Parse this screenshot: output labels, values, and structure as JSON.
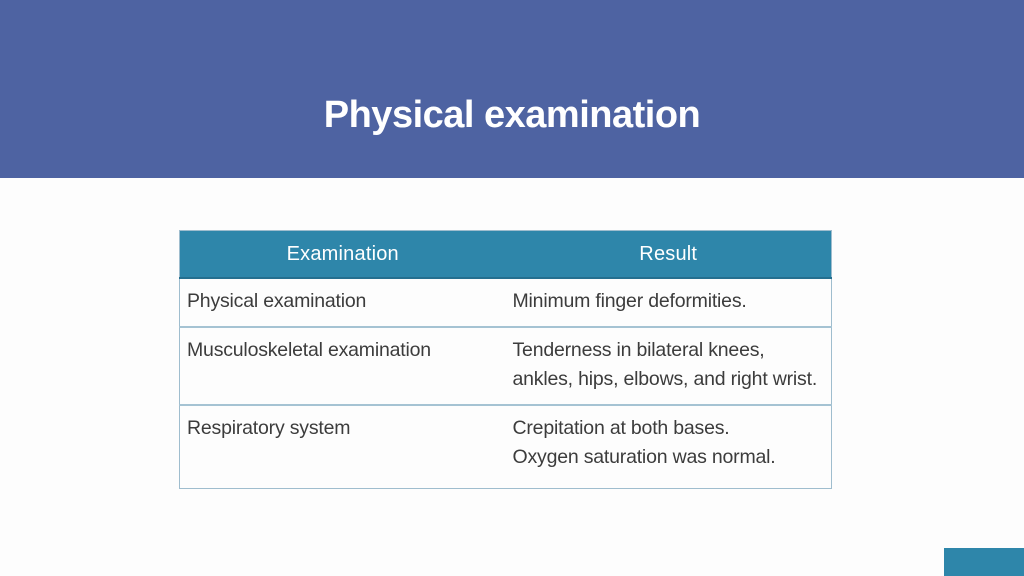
{
  "slide": {
    "title": "Physical examination",
    "background_color": "#FDFDFD"
  },
  "title_band": {
    "color": "#4E63A2",
    "title_text_color": "#FFFFFF"
  },
  "table": {
    "header_bg_color": "#2E86AA",
    "header_text_color": "#FFFFFF",
    "border_color": "#9FBDCE",
    "divider_color": "#A5C3D3",
    "body_text_color": "#3C3C3C",
    "columns": [
      "Examination",
      "Result"
    ],
    "rows": [
      {
        "examination": "Physical examination",
        "result": "Minimum finger deformities."
      },
      {
        "examination": "Musculoskeletal examination",
        "result": "Tenderness in bilateral knees, ankles, hips, elbows, and right wrist."
      },
      {
        "examination": "Respiratory system",
        "result": "Crepitation at both bases.\nOxygen saturation was normal."
      }
    ]
  },
  "decor": {
    "corner_rectangle_color": "#2E86AA"
  }
}
